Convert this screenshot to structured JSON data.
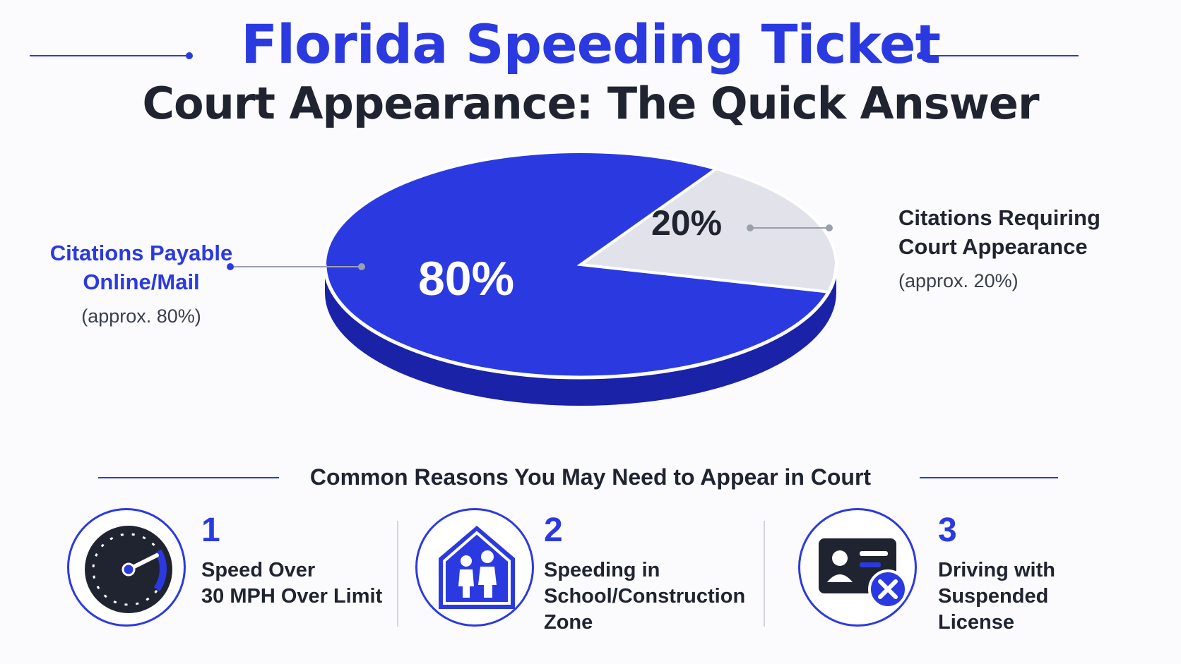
{
  "title": {
    "line1": "Florida Speeding Ticket",
    "line2": "Court Appearance: The Quick Answer"
  },
  "colors": {
    "accent": "#2b3ae0",
    "accent_dark": "#1a22a8",
    "grey_slice": "#e2e3ea",
    "grey_slice_dark": "#c7c8d2",
    "text_dark": "#1f2430",
    "text_muted": "#3a3f4c",
    "leader": "#9aa0ab"
  },
  "chart_data": {
    "type": "pie",
    "title": "",
    "slices": [
      {
        "label": "Citations Payable Online/Mail",
        "value": 80,
        "data_label": "80%",
        "note": "(approx. 80%)",
        "color": "#2b3ae0"
      },
      {
        "label": "Citations Requiring Court Appearance",
        "value": 20,
        "data_label": "20%",
        "note": "(approx. 20%)",
        "color": "#e2e3ea"
      }
    ]
  },
  "callouts": {
    "left": {
      "title": "Citations Payable Online/Mail",
      "line1": "Citations Payable",
      "line2": "Online/Mail",
      "sub": "(approx. 80%)"
    },
    "right": {
      "title": "Citations Requiring Court Appearance",
      "line1": "Citations Requiring",
      "line2": "Court Appearance",
      "sub": "(approx. 20%)"
    }
  },
  "reasons": {
    "heading": "Common Reasons You May Need to Appear in Court",
    "items": [
      {
        "number": "1",
        "lines": [
          "Speed Over",
          "30 MPH Over Limit"
        ],
        "icon": "speedometer-icon"
      },
      {
        "number": "2",
        "lines": [
          "Speeding in",
          "School/Construction",
          "Zone"
        ],
        "icon": "school-zone-sign-icon"
      },
      {
        "number": "3",
        "lines": [
          "Driving with",
          "Suspended",
          "License"
        ],
        "icon": "suspended-license-icon"
      }
    ]
  }
}
